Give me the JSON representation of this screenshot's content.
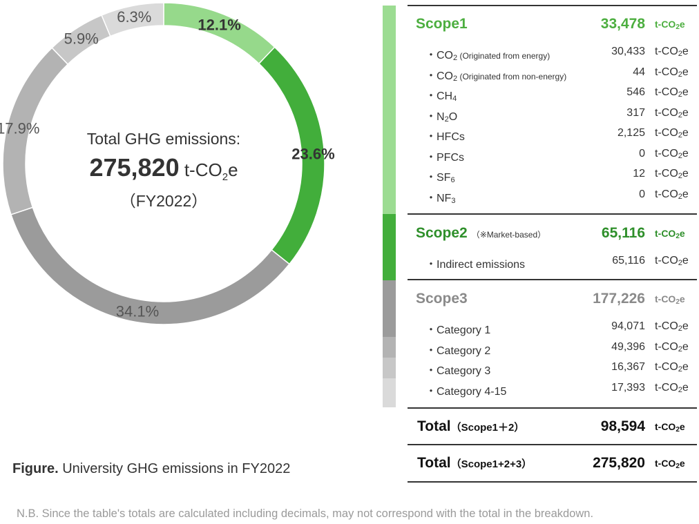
{
  "chart_data": {
    "type": "pie",
    "categories": [
      "Scope1",
      "Scope2 (Market-based)",
      "Scope3 Category 1",
      "Scope3 Category 2",
      "Scope3 Category 3",
      "Scope3 Category 4-15"
    ],
    "values": [
      12.1,
      23.6,
      34.1,
      17.9,
      5.9,
      6.3
    ],
    "slice_labels": [
      "12.1%",
      "23.6%",
      "34.1%",
      "17.9%",
      "5.9%",
      "6.3%"
    ],
    "colors": [
      "#96d98b",
      "#42ae3b",
      "#9b9b9b",
      "#b3b3b3",
      "#c7c7c7",
      "#dadada"
    ],
    "label_colors": [
      "#333333",
      "#333333",
      "#555555",
      "#555555",
      "#555555",
      "#555555"
    ],
    "bold_labels": [
      true,
      true,
      false,
      false,
      false,
      false
    ],
    "start_angle_deg": 0,
    "donut": true
  },
  "center": {
    "label": "Total GHG emissions:",
    "value": "275,820",
    "unit_prefix": "t-CO",
    "unit_sub": "2",
    "unit_suffix": "e",
    "year": "（FY2022）"
  },
  "caption": {
    "bold": "Figure.",
    "text": " University GHG emissions in FY2022"
  },
  "footnote": "N.B. Since the table's totals are calculated including decimals, may not correspond with the total in the breakdown.",
  "unit": {
    "prefix": "t-CO",
    "sub": "2",
    "suffix": "e"
  },
  "scope1": {
    "label": "Scope1",
    "value": "33,478",
    "color": "#4cae3f",
    "items": [
      {
        "pre": "・CO",
        "sub": "2",
        "post": "",
        "small": " (Originated from energy)",
        "value": "30,433"
      },
      {
        "pre": "・CO",
        "sub": "2",
        "post": "",
        "small": " (Originated from non-energy)",
        "value": "44"
      },
      {
        "pre": "・CH",
        "sub": "4",
        "post": "",
        "small": "",
        "value": "546"
      },
      {
        "pre": "・N",
        "sub": "2",
        "post": "O",
        "small": "",
        "value": "317"
      },
      {
        "pre": "・HFCs",
        "sub": "",
        "post": "",
        "small": "",
        "value": "2,125"
      },
      {
        "pre": "・PFCs",
        "sub": "",
        "post": "",
        "small": "",
        "value": "0"
      },
      {
        "pre": "・SF",
        "sub": "6",
        "post": "",
        "small": "",
        "value": "12"
      },
      {
        "pre": "・NF",
        "sub": "3",
        "post": "",
        "small": "",
        "value": "0"
      }
    ]
  },
  "scope2": {
    "label": "Scope2",
    "note": "（※Market-based）",
    "value": "65,116",
    "color": "#2e8f2a",
    "items": [
      {
        "pre": "・Indirect emissions",
        "sub": "",
        "post": "",
        "small": "",
        "value": "65,116"
      }
    ]
  },
  "scope3": {
    "label": "Scope3",
    "value": "177,226",
    "color": "#8a8a8a",
    "items": [
      {
        "pre": "・Category 1",
        "sub": "",
        "post": "",
        "small": "",
        "value": "94,071"
      },
      {
        "pre": "・Category 2",
        "sub": "",
        "post": "",
        "small": "",
        "value": "49,396"
      },
      {
        "pre": "・Category 3",
        "sub": "",
        "post": "",
        "small": "",
        "value": "16,367"
      },
      {
        "pre": "・Category 4-15",
        "sub": "",
        "post": "",
        "small": "",
        "value": "17,393"
      }
    ]
  },
  "totals": [
    {
      "label": "Total",
      "paren": "（Scope1＋2）",
      "value": "98,594"
    },
    {
      "label": "Total",
      "paren": "（Scope1+2+3）",
      "value": "275,820"
    }
  ],
  "side_bar_colors": {
    "scope1": "#9cdc92",
    "scope2": "#42ae3b",
    "scope3_cat1": "#9b9b9b",
    "scope3_cat2": "#b3b3b3",
    "scope3_cat3": "#c7c7c7",
    "scope3_cat4_15": "#dadada"
  }
}
